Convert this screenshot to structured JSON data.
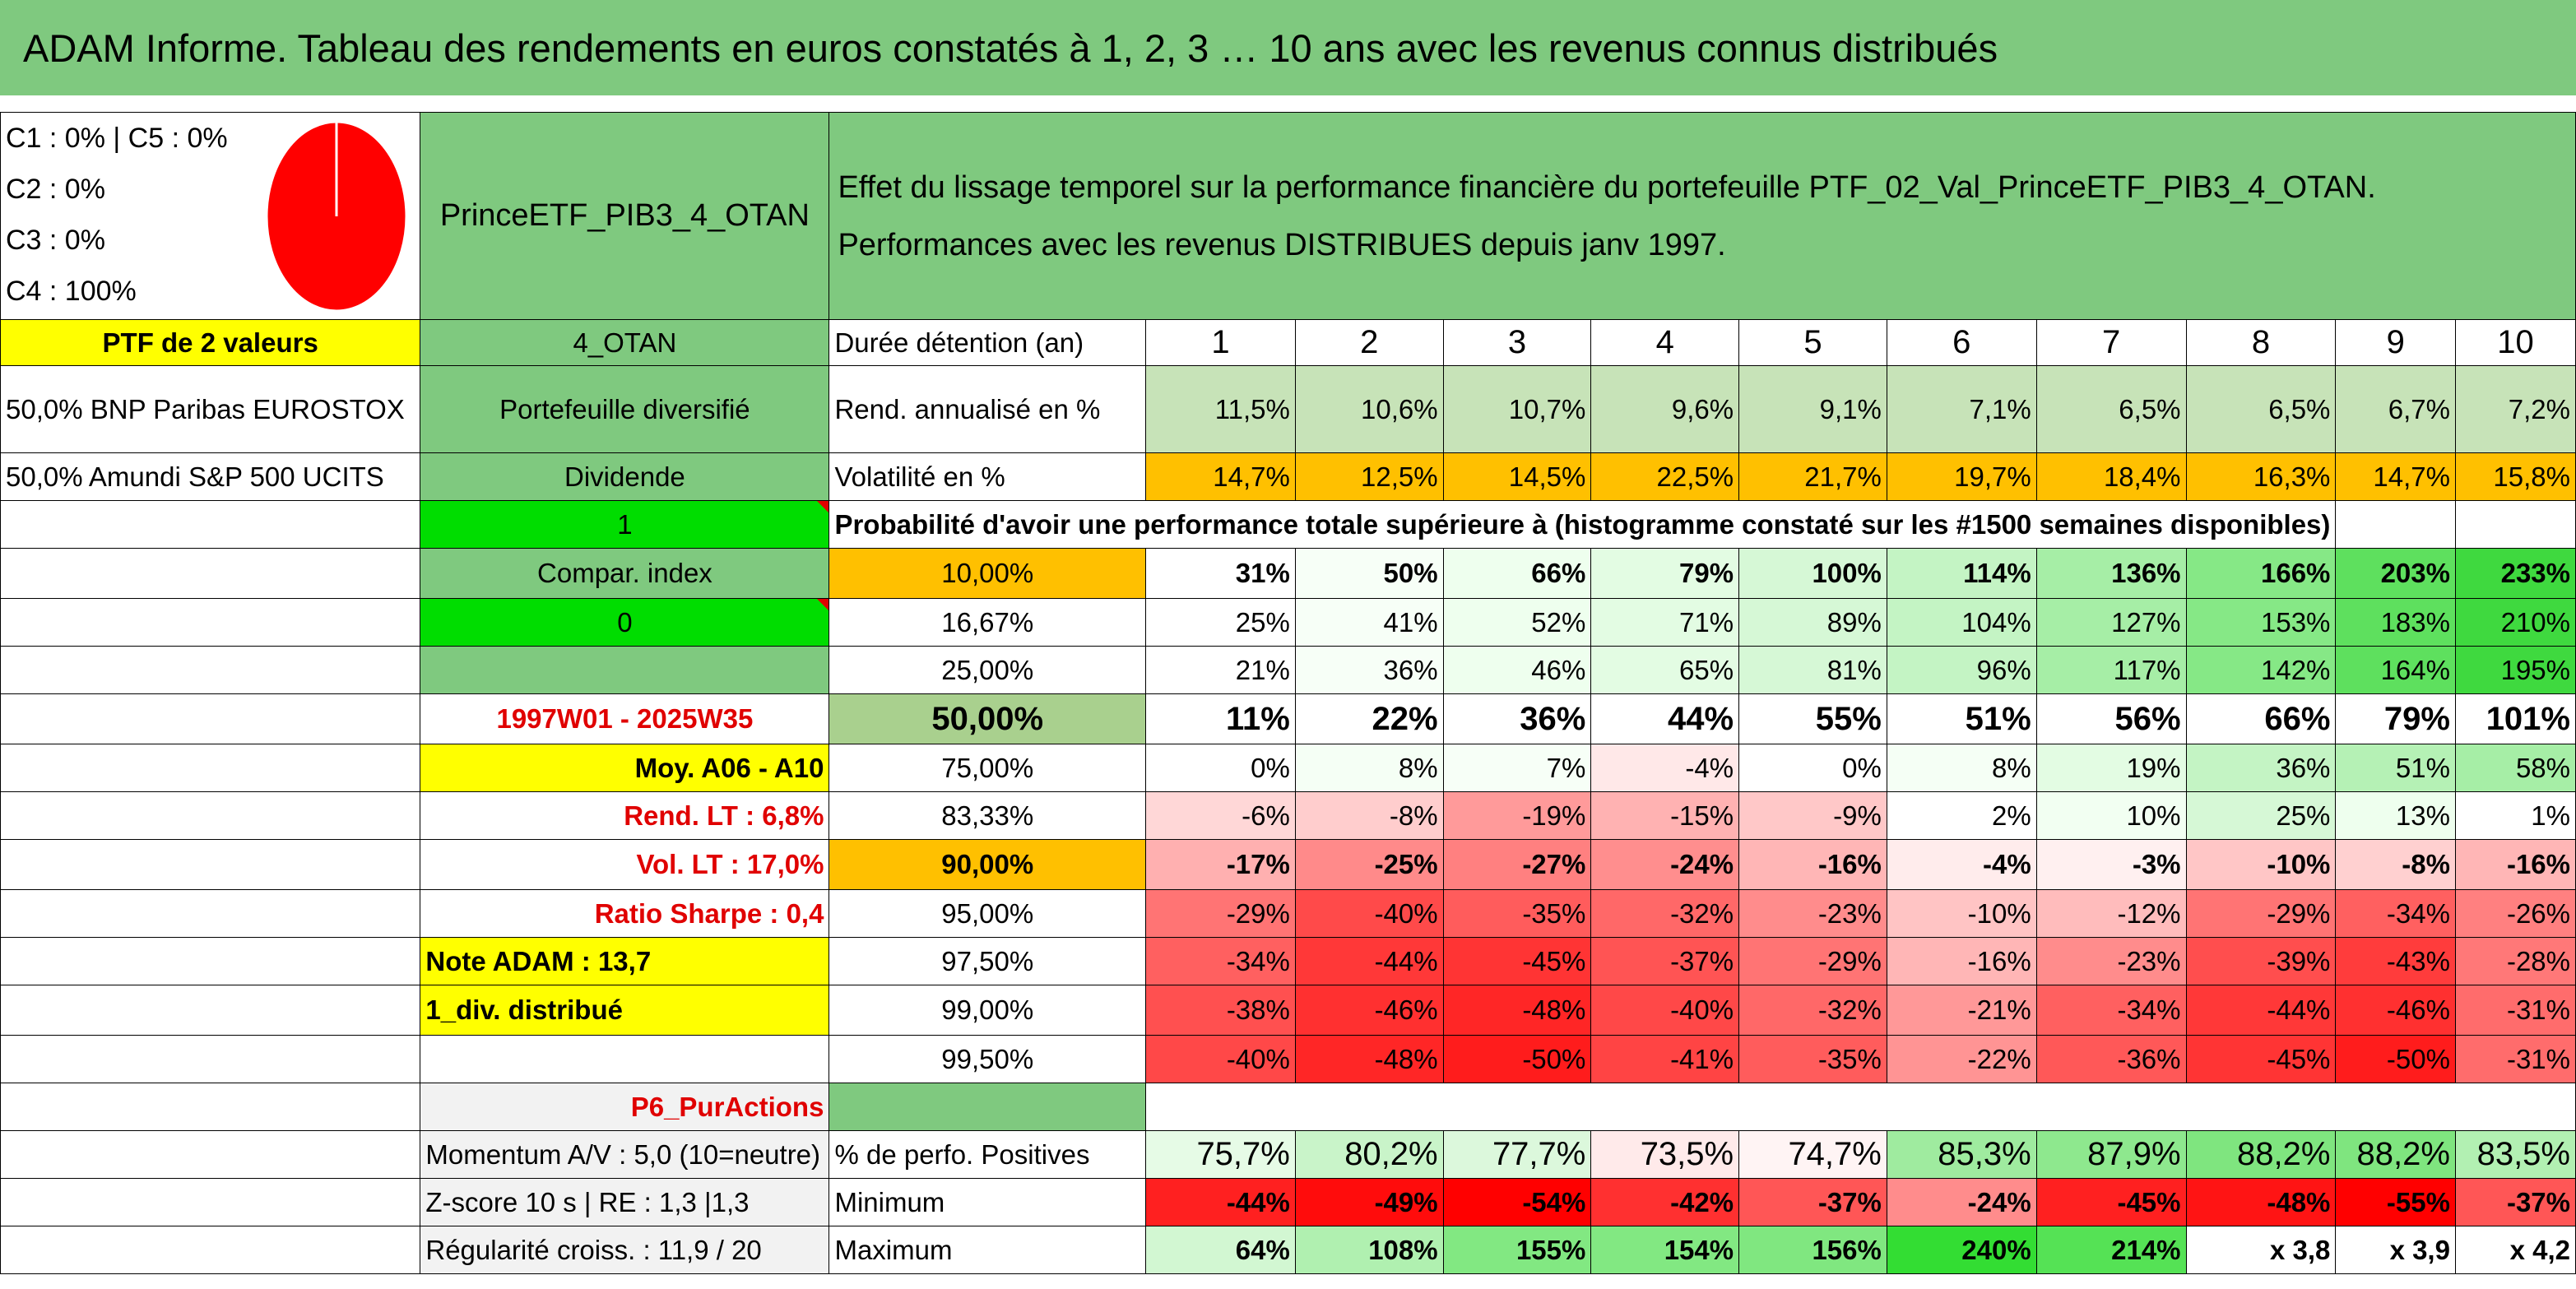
{
  "title": "ADAM Informe. Tableau des rendements en euros constatés à 1, 2, 3 … 10 ans avec les revenus connus distribués",
  "left": {
    "category_lines": [
      "C1 : 0% | C5 : 0%",
      "C2 : 0%",
      "C3 : 0%",
      "C4 : 100%"
    ],
    "pie_color": "#ff0000",
    "ptf_label": "PTF de 2 valeurs",
    "holdings": [
      "50,0% BNP Paribas EUROSTOX",
      "50,0% Amundi S&P 500 UCITS"
    ],
    "info_rows": [
      "Moy. A06 - A10",
      "Rend. LT : 6,8%",
      "Vol. LT : 17,0%",
      "Ratio Sharpe : 0,4",
      "Note ADAM : 13,7",
      "1_div. distribué"
    ]
  },
  "mid": {
    "portfolio_name": "PrinceETF_PIB3_4_OTAN",
    "short_name": "4_OTAN",
    "type": "Portefeuille diversifié",
    "dividend": "Dividende",
    "one": "1",
    "compar": "Compar. index",
    "zero": "0",
    "period": "1997W01 - 2025W35",
    "tag": "P6_PurActions",
    "footer_rows": [
      "Momentum A/V : 5,0 (10=neutre)",
      "Z-score 10 s | RE : 1,3 |1,3",
      "Régularité croiss. : 11,9 / 20"
    ]
  },
  "description": "Effet du lissage temporel sur la performance financière du portefeuille PTF_02_Val_PrinceETF_PIB3_4_OTAN. Performances avec les revenus DISTRIBUES depuis janv 1997.",
  "labels": {
    "duration": "Durée détention (an)",
    "annual": "Rend. annualisé en %",
    "vol": "Volatilité en %",
    "prob": "Probabilité d'avoir une performance totale supérieure à (histogramme constaté sur les #1500 semaines disponibles)",
    "positive": "% de perfo. Positives",
    "min": "Minimum",
    "max": "Maximum"
  },
  "years": [
    "1",
    "2",
    "3",
    "4",
    "5",
    "6",
    "7",
    "8",
    "9",
    "10"
  ],
  "annual": [
    "11,5%",
    "10,6%",
    "10,7%",
    "9,6%",
    "9,1%",
    "7,1%",
    "6,5%",
    "6,5%",
    "6,7%",
    "7,2%"
  ],
  "vol": [
    "14,7%",
    "12,5%",
    "14,5%",
    "22,5%",
    "21,7%",
    "19,7%",
    "18,4%",
    "16,3%",
    "14,7%",
    "15,8%"
  ],
  "prob_rows": [
    {
      "p": "10,00%",
      "v": [
        "31%",
        "50%",
        "66%",
        "79%",
        "100%",
        "114%",
        "136%",
        "166%",
        "203%",
        "233%"
      ],
      "c": [
        "#ffffff",
        "#f7fff7",
        "#eeffee",
        "#e3fce3",
        "#d6f8d6",
        "#c4f4c4",
        "#a6eea6",
        "#86e886",
        "#5ee05e",
        "#3fd93f"
      ]
    },
    {
      "p": "16,67%",
      "v": [
        "25%",
        "41%",
        "52%",
        "71%",
        "89%",
        "104%",
        "127%",
        "153%",
        "183%",
        "210%"
      ],
      "c": [
        "#ffffff",
        "#f7fff7",
        "#eeffee",
        "#e3fce3",
        "#d6f8d6",
        "#c4f4c4",
        "#a6eea6",
        "#86e886",
        "#5ee05e",
        "#3fd93f"
      ]
    },
    {
      "p": "25,00%",
      "v": [
        "21%",
        "36%",
        "46%",
        "65%",
        "81%",
        "96%",
        "117%",
        "142%",
        "164%",
        "195%"
      ],
      "c": [
        "#ffffff",
        "#f7fff7",
        "#eeffee",
        "#e3fce3",
        "#d6f8d6",
        "#c4f4c4",
        "#a6eea6",
        "#86e886",
        "#5ee05e",
        "#3fd93f"
      ]
    },
    {
      "p": "50,00%",
      "v": [
        "11%",
        "22%",
        "36%",
        "44%",
        "55%",
        "51%",
        "56%",
        "66%",
        "79%",
        "101%"
      ],
      "c": [
        "#ffffff",
        "#ffffff",
        "#ffffff",
        "#ffffff",
        "#ffffff",
        "#ffffff",
        "#ffffff",
        "#ffffff",
        "#ffffff",
        "#ffffff"
      ]
    },
    {
      "p": "75,00%",
      "v": [
        "0%",
        "8%",
        "7%",
        "-4%",
        "0%",
        "8%",
        "19%",
        "36%",
        "51%",
        "58%"
      ],
      "c": [
        "#ffffff",
        "#f5fff5",
        "#f7fff7",
        "#ffe8e8",
        "#ffffff",
        "#f5fff5",
        "#e3fce3",
        "#c4f4c4",
        "#b5f1b5",
        "#a6eea6"
      ]
    },
    {
      "p": "83,33%",
      "v": [
        "-6%",
        "-8%",
        "-19%",
        "-15%",
        "-9%",
        "2%",
        "10%",
        "25%",
        "13%",
        "1%"
      ],
      "c": [
        "#ffd7d7",
        "#ffcdcd",
        "#ff9a9a",
        "#ffb2b2",
        "#ffc8c8",
        "#ffffff",
        "#f2fff2",
        "#d6f8d6",
        "#eeffee",
        "#ffffff"
      ]
    },
    {
      "p": "90,00%",
      "v": [
        "-17%",
        "-25%",
        "-27%",
        "-24%",
        "-16%",
        "-4%",
        "-3%",
        "-10%",
        "-8%",
        "-16%"
      ],
      "c": [
        "#ffb0b0",
        "#ff8a8a",
        "#ff8080",
        "#ff8e8e",
        "#ffb6b6",
        "#ffecec",
        "#fff0f0",
        "#ffc6c6",
        "#ffd0d0",
        "#ffb6b6"
      ]
    },
    {
      "p": "95,00%",
      "v": [
        "-29%",
        "-40%",
        "-35%",
        "-32%",
        "-23%",
        "-10%",
        "-12%",
        "-29%",
        "-34%",
        "-26%"
      ],
      "c": [
        "#ff7474",
        "#ff4a4a",
        "#ff5c5c",
        "#ff6868",
        "#ff8c8c",
        "#ffc4c4",
        "#ffbcbc",
        "#ff7474",
        "#ff6060",
        "#ff8080"
      ]
    },
    {
      "p": "97,50%",
      "v": [
        "-34%",
        "-44%",
        "-45%",
        "-37%",
        "-29%",
        "-16%",
        "-23%",
        "-39%",
        "-43%",
        "-28%"
      ],
      "c": [
        "#ff6060",
        "#ff3838",
        "#ff3434",
        "#ff5454",
        "#ff7474",
        "#ffb6b6",
        "#ff8c8c",
        "#ff4e4e",
        "#ff3c3c",
        "#ff7878"
      ]
    },
    {
      "p": "99,00%",
      "v": [
        "-38%",
        "-46%",
        "-48%",
        "-40%",
        "-32%",
        "-21%",
        "-34%",
        "-44%",
        "-46%",
        "-31%"
      ],
      "c": [
        "#ff5050",
        "#ff3030",
        "#ff2626",
        "#ff4848",
        "#ff6868",
        "#ff9898",
        "#ff6060",
        "#ff3838",
        "#ff3030",
        "#ff6c6c"
      ]
    },
    {
      "p": "99,50%",
      "v": [
        "-40%",
        "-48%",
        "-50%",
        "-41%",
        "-35%",
        "-22%",
        "-36%",
        "-45%",
        "-50%",
        "-31%"
      ],
      "c": [
        "#ff4848",
        "#ff2626",
        "#ff1c1c",
        "#ff4444",
        "#ff5c5c",
        "#ff9494",
        "#ff5858",
        "#ff3434",
        "#ff1c1c",
        "#ff6c6c"
      ]
    }
  ],
  "positive": [
    "75,7%",
    "80,2%",
    "77,7%",
    "73,5%",
    "74,7%",
    "85,3%",
    "87,9%",
    "88,2%",
    "88,2%",
    "83,5%"
  ],
  "positive_colors": [
    "#e6fbe6",
    "#c9f4c9",
    "#dcf8dc",
    "#ffeaea",
    "#fff4f4",
    "#9feb9f",
    "#8ee88e",
    "#7fe57f",
    "#7fe57f",
    "#b2f0b2"
  ],
  "minimum": [
    "-44%",
    "-49%",
    "-54%",
    "-42%",
    "-37%",
    "-24%",
    "-45%",
    "-48%",
    "-55%",
    "-37%"
  ],
  "minimum_colors": [
    "#ff2020",
    "#ff0c0c",
    "#ff0000",
    "#ff3030",
    "#ff5656",
    "#ff8c8c",
    "#ff2020",
    "#ff1414",
    "#ff0000",
    "#ff5656"
  ],
  "maximum": [
    "64%",
    "108%",
    "155%",
    "154%",
    "156%",
    "240%",
    "214%",
    "x 3,8",
    "x 3,9",
    "x 4,2"
  ],
  "maximum_colors": [
    "#d2f7d2",
    "#b0f0b0",
    "#82e882",
    "#82e882",
    "#80e780",
    "#33dd33",
    "#55e255",
    "#ffffff",
    "#ffffff",
    "#ffffff"
  ],
  "colors": {
    "green_header": "#7fc97f",
    "yellow": "#ffff00",
    "orange": "#ffc000",
    "bright_green": "#00dd00",
    "red_text": "#e00000"
  }
}
